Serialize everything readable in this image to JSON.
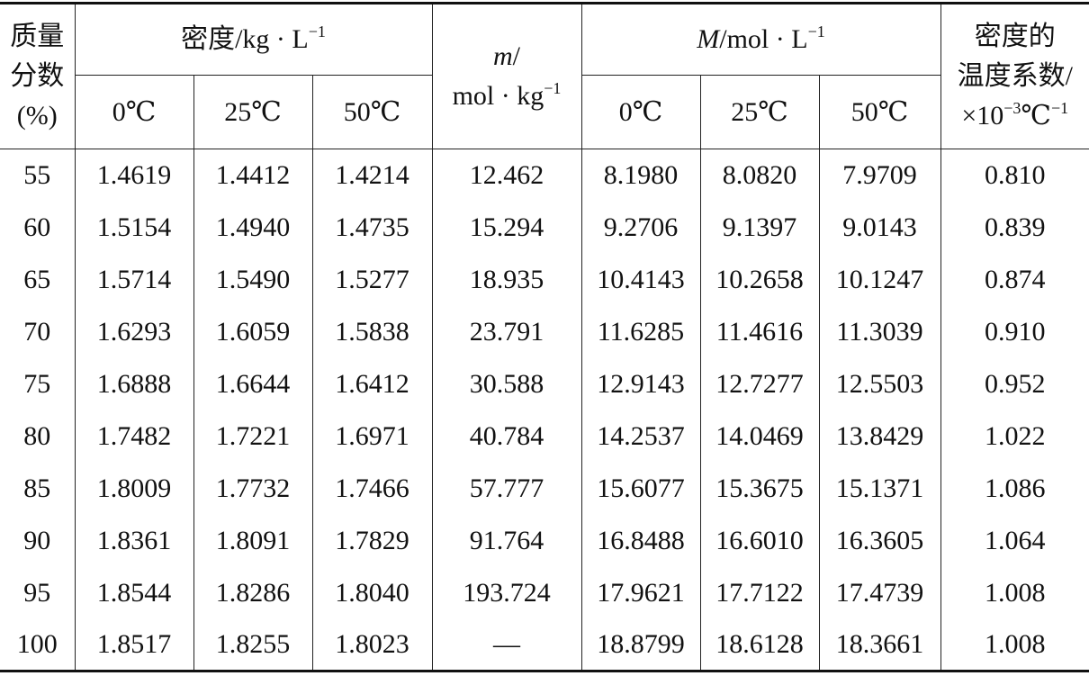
{
  "table": {
    "header": {
      "mass_fraction": [
        "质量",
        "分数",
        "(%)"
      ],
      "density": {
        "text": "密度/kg · L",
        "sup": "−1"
      },
      "molality": {
        "symbol": "m",
        "text": "/",
        "unit": "mol · kg",
        "sup": "−1"
      },
      "molarity": {
        "symbol": "M",
        "text": "/mol · L",
        "sup": "−1"
      },
      "temp_coeff": {
        "lines": [
          "密度的",
          "温度系数/"
        ],
        "prefix": "×10",
        "sup1": "−3",
        "unit": "℃",
        "sup2": "−1"
      },
      "temps": [
        "0℃",
        "25℃",
        "50℃"
      ]
    },
    "rows": [
      [
        "55",
        "1.4619",
        "1.4412",
        "1.4214",
        "12.462",
        "8.1980",
        "8.0820",
        "7.9709",
        "0.810"
      ],
      [
        "60",
        "1.5154",
        "1.4940",
        "1.4735",
        "15.294",
        "9.2706",
        "9.1397",
        "9.0143",
        "0.839"
      ],
      [
        "65",
        "1.5714",
        "1.5490",
        "1.5277",
        "18.935",
        "10.4143",
        "10.2658",
        "10.1247",
        "0.874"
      ],
      [
        "70",
        "1.6293",
        "1.6059",
        "1.5838",
        "23.791",
        "11.6285",
        "11.4616",
        "11.3039",
        "0.910"
      ],
      [
        "75",
        "1.6888",
        "1.6644",
        "1.6412",
        "30.588",
        "12.9143",
        "12.7277",
        "12.5503",
        "0.952"
      ],
      [
        "80",
        "1.7482",
        "1.7221",
        "1.6971",
        "40.784",
        "14.2537",
        "14.0469",
        "13.8429",
        "1.022"
      ],
      [
        "85",
        "1.8009",
        "1.7732",
        "1.7466",
        "57.777",
        "15.6077",
        "15.3675",
        "15.1371",
        "1.086"
      ],
      [
        "90",
        "1.8361",
        "1.8091",
        "1.7829",
        "91.764",
        "16.8488",
        "16.6010",
        "16.3605",
        "1.064"
      ],
      [
        "95",
        "1.8544",
        "1.8286",
        "1.8040",
        "193.724",
        "17.9621",
        "17.7122",
        "17.4739",
        "1.008"
      ],
      [
        "100",
        "1.8517",
        "1.8255",
        "1.8023",
        "—",
        "18.8799",
        "18.6128",
        "18.3661",
        "1.008"
      ]
    ]
  }
}
